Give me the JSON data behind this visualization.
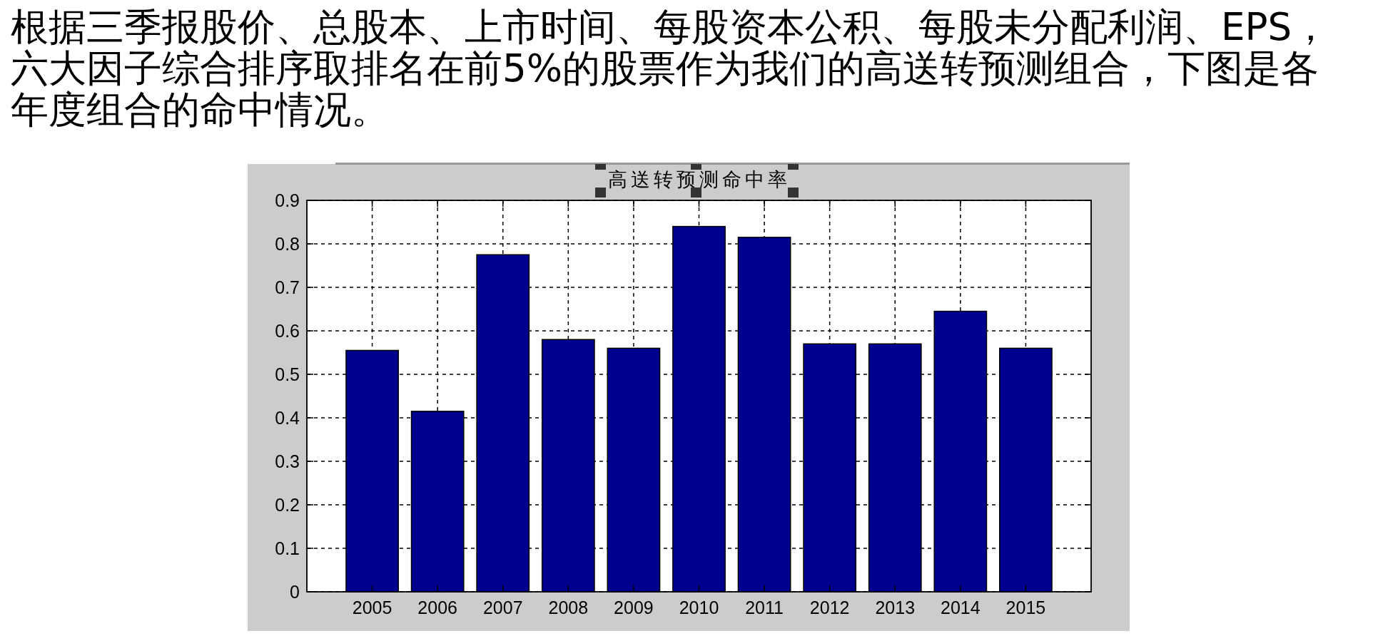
{
  "chart_data": {
    "type": "bar",
    "title": "高送转预测命中率",
    "annotations": [
      "根据三季报股价、总股本、上市时间、每股资本公积、每股未分配利润、EPS，六大因子综合排序取排名在前5%的股票作为我们的高送转预测组合，下图是各年度组合的命中情况。"
    ],
    "categories": [
      "2005",
      "2006",
      "2007",
      "2008",
      "2009",
      "2010",
      "2011",
      "2012",
      "2013",
      "2014",
      "2015"
    ],
    "values": [
      0.555,
      0.415,
      0.775,
      0.58,
      0.56,
      0.84,
      0.815,
      0.57,
      0.57,
      0.645,
      0.56
    ],
    "color": "#00008f",
    "ylim": [
      0,
      0.9
    ],
    "yticks": [
      0,
      0.1,
      0.2,
      0.3,
      0.4,
      0.5,
      0.6,
      0.7,
      0.8,
      0.9
    ],
    "grid": true
  }
}
